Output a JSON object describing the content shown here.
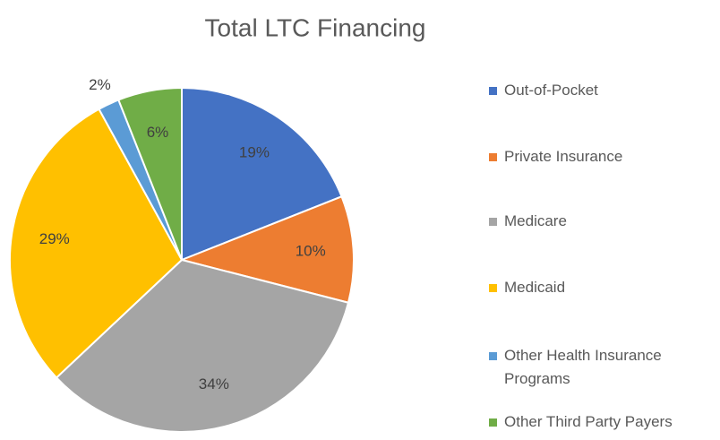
{
  "chart_data": {
    "type": "pie",
    "title": "Total LTC Financing",
    "categories": [
      "Out-of-Pocket",
      "Private Insurance",
      "Medicare",
      "Medicaid",
      "Other Health Insurance Programs",
      "Other Third Party Payers"
    ],
    "values": [
      19,
      10,
      34,
      29,
      2,
      6
    ],
    "value_labels": [
      "19%",
      "10%",
      "34%",
      "29%",
      "2%",
      "6%"
    ],
    "colors": [
      "#4472c4",
      "#ed7d31",
      "#a5a5a5",
      "#ffc000",
      "#5b9bd5",
      "#70ad47"
    ],
    "legend": "right"
  }
}
